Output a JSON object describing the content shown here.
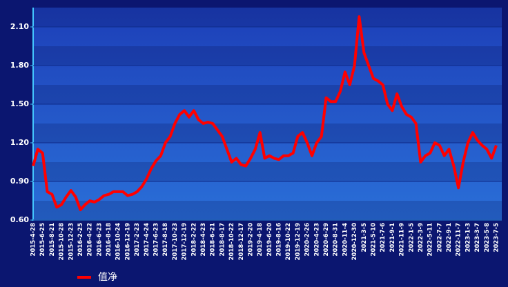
{
  "chart_data": {
    "type": "line",
    "categories": [
      "2015-4-28",
      null,
      "2015-6-25",
      null,
      "2015-8-21",
      null,
      "2015-10-28",
      null,
      "2015-12-23",
      null,
      "2016-2-25",
      null,
      "2016-4-22",
      null,
      "2016-6-23",
      null,
      "2016-8-18",
      null,
      "2016-10-24",
      null,
      "2016-12-19",
      null,
      "2017-2-23",
      null,
      "2017-4-24",
      null,
      "2017-6-23",
      null,
      "2017-8-18",
      null,
      "2017-10-23",
      null,
      "2017-12-19",
      null,
      "2018-2-22",
      null,
      "2018-4-23",
      null,
      "2018-6-21",
      null,
      "2018-8-17",
      null,
      "2018-10-22",
      null,
      "2018-12-17",
      null,
      "2019-2-20",
      null,
      "2019-4-18",
      null,
      "2019-6-20",
      null,
      "2019-8-16",
      null,
      "2019-10-22",
      null,
      "2019-12-19",
      null,
      "2020-2-26",
      null,
      "2020-4-23",
      null,
      "2020-6-29",
      null,
      "2020-8-31",
      null,
      "2020-11-4",
      null,
      "2020-12-30",
      null,
      "2021-3-5",
      null,
      "2021-5-10",
      null,
      "2021-7-6",
      null,
      "2021-9-1",
      null,
      "2021-11-9",
      null,
      "2022-1-5",
      null,
      "2022-3-9",
      null,
      "2022-5-11",
      null,
      "2022-7-7",
      null,
      "2022-9-1",
      null,
      "2022-11-7",
      null,
      "2023-1-3",
      null,
      "2023-3-7",
      null,
      "2023-5-8",
      null,
      "2023-7-5"
    ],
    "series": [
      {
        "name": "值净",
        "color": "#ff0000",
        "values": [
          1.02,
          1.15,
          1.12,
          0.82,
          0.8,
          0.7,
          0.72,
          0.78,
          0.83,
          0.78,
          0.68,
          0.72,
          0.75,
          0.74,
          0.76,
          0.79,
          0.8,
          0.82,
          0.82,
          0.82,
          0.79,
          0.8,
          0.82,
          0.86,
          0.92,
          1.0,
          1.06,
          1.1,
          1.2,
          1.25,
          1.35,
          1.42,
          1.45,
          1.4,
          1.45,
          1.38,
          1.35,
          1.36,
          1.35,
          1.3,
          1.25,
          1.15,
          1.05,
          1.08,
          1.03,
          1.02,
          1.08,
          1.15,
          1.28,
          1.08,
          1.1,
          1.08,
          1.07,
          1.1,
          1.1,
          1.12,
          1.25,
          1.28,
          1.2,
          1.1,
          1.2,
          1.25,
          1.55,
          1.52,
          1.52,
          1.6,
          1.75,
          1.65,
          1.8,
          2.18,
          1.9,
          1.8,
          1.7,
          1.68,
          1.65,
          1.5,
          1.45,
          1.58,
          1.48,
          1.42,
          1.4,
          1.35,
          1.05,
          1.1,
          1.12,
          1.2,
          1.18,
          1.1,
          1.15,
          1.02,
          0.85,
          1.05,
          1.2,
          1.28,
          1.22,
          1.18,
          1.15,
          1.08,
          1.18
        ]
      }
    ],
    "ylim": [
      0.6,
      2.25
    ],
    "yticks": [
      {
        "value": 0.6,
        "label": "0.60"
      },
      {
        "value": 0.9,
        "label": "0.90"
      },
      {
        "value": 1.2,
        "label": "1.20"
      },
      {
        "value": 1.5,
        "label": "1.50"
      },
      {
        "value": 1.8,
        "label": "1.80"
      },
      {
        "value": 2.1,
        "label": "2.10"
      }
    ],
    "grid": true
  }
}
